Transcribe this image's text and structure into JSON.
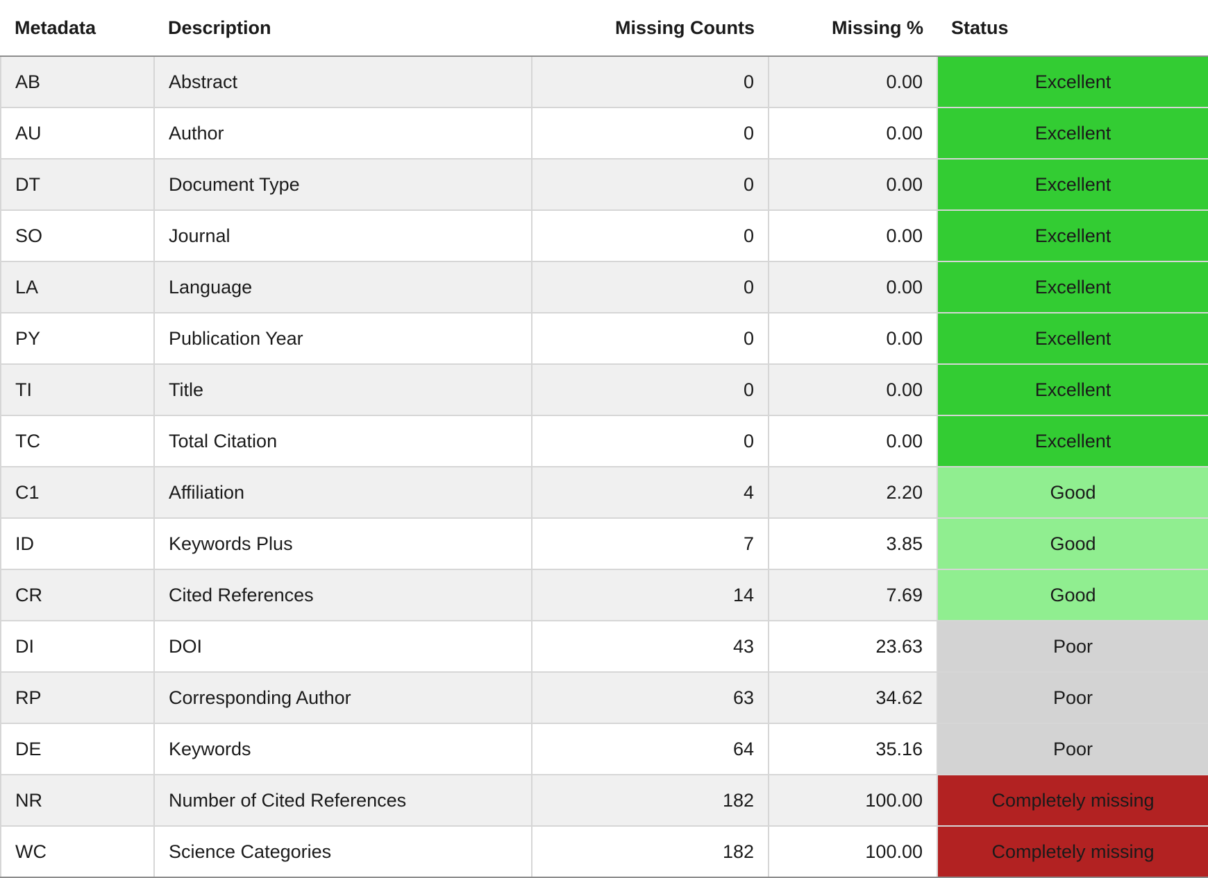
{
  "table": {
    "headers": {
      "metadata": "Metadata",
      "description": "Description",
      "missing_counts": "Missing Counts",
      "missing_pct": "Missing %",
      "status": "Status"
    },
    "status_colors": {
      "Excellent": "#33cc33",
      "Good": "#90ee90",
      "Poor": "#d3d3d3",
      "Completely missing": "#b22222"
    },
    "rows": [
      {
        "metadata": "AB",
        "description": "Abstract",
        "missing_counts": "0",
        "missing_pct": "0.00",
        "status": "Excellent"
      },
      {
        "metadata": "AU",
        "description": "Author",
        "missing_counts": "0",
        "missing_pct": "0.00",
        "status": "Excellent"
      },
      {
        "metadata": "DT",
        "description": "Document Type",
        "missing_counts": "0",
        "missing_pct": "0.00",
        "status": "Excellent"
      },
      {
        "metadata": "SO",
        "description": "Journal",
        "missing_counts": "0",
        "missing_pct": "0.00",
        "status": "Excellent"
      },
      {
        "metadata": "LA",
        "description": "Language",
        "missing_counts": "0",
        "missing_pct": "0.00",
        "status": "Excellent"
      },
      {
        "metadata": "PY",
        "description": "Publication Year",
        "missing_counts": "0",
        "missing_pct": "0.00",
        "status": "Excellent"
      },
      {
        "metadata": "TI",
        "description": "Title",
        "missing_counts": "0",
        "missing_pct": "0.00",
        "status": "Excellent"
      },
      {
        "metadata": "TC",
        "description": "Total Citation",
        "missing_counts": "0",
        "missing_pct": "0.00",
        "status": "Excellent"
      },
      {
        "metadata": "C1",
        "description": "Affiliation",
        "missing_counts": "4",
        "missing_pct": "2.20",
        "status": "Good"
      },
      {
        "metadata": "ID",
        "description": "Keywords Plus",
        "missing_counts": "7",
        "missing_pct": "3.85",
        "status": "Good"
      },
      {
        "metadata": "CR",
        "description": "Cited References",
        "missing_counts": "14",
        "missing_pct": "7.69",
        "status": "Good"
      },
      {
        "metadata": "DI",
        "description": "DOI",
        "missing_counts": "43",
        "missing_pct": "23.63",
        "status": "Poor"
      },
      {
        "metadata": "RP",
        "description": "Corresponding Author",
        "missing_counts": "63",
        "missing_pct": "34.62",
        "status": "Poor"
      },
      {
        "metadata": "DE",
        "description": "Keywords",
        "missing_counts": "64",
        "missing_pct": "35.16",
        "status": "Poor"
      },
      {
        "metadata": "NR",
        "description": "Number of Cited References",
        "missing_counts": "182",
        "missing_pct": "100.00",
        "status": "Completely missing"
      },
      {
        "metadata": "WC",
        "description": "Science Categories",
        "missing_counts": "182",
        "missing_pct": "100.00",
        "status": "Completely missing"
      }
    ]
  }
}
